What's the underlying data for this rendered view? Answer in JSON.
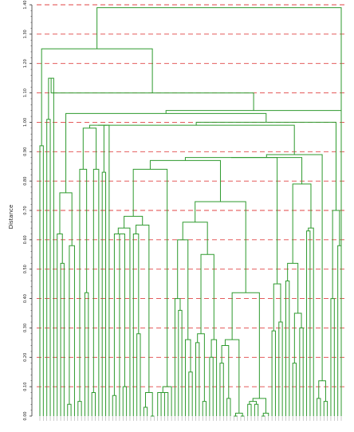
{
  "chart_data": {
    "type": "dendrogram",
    "title": "",
    "ylabel": "Distance",
    "xlabel": "",
    "ylim": [
      0,
      1.4
    ],
    "grid": true,
    "grid_style": "dashed",
    "colors": {
      "branch": "#2e9a2e",
      "grid": "#e04545",
      "axis": "#333333"
    },
    "y_ticks": [
      "0.00",
      "0.10",
      "0.20",
      "0.30",
      "0.40",
      "0.50",
      "0.60",
      "0.70",
      "0.80",
      "0.90",
      "1.00",
      "1.10",
      "1.20",
      "1.30",
      "1.40"
    ],
    "leaf_labels": [
      "",
      "",
      "",
      "",
      "",
      "",
      "",
      "",
      "",
      "",
      "",
      "",
      "",
      "",
      "",
      "",
      "",
      "",
      "",
      "",
      "",
      "",
      "",
      "",
      "",
      "",
      "",
      "",
      "",
      "",
      "",
      "",
      "",
      "",
      "",
      "",
      "",
      "",
      "",
      "",
      "",
      "",
      "",
      "",
      "",
      "",
      "",
      "",
      "",
      "",
      "",
      "",
      "",
      "",
      "",
      "",
      "",
      "",
      "",
      "",
      "",
      "",
      "",
      "",
      "",
      "",
      "",
      "",
      "",
      "",
      "",
      "",
      "",
      "",
      "",
      "",
      "",
      "",
      "",
      "",
      "",
      "",
      "",
      "",
      "",
      "",
      "",
      "",
      "",
      "",
      "",
      ""
    ],
    "links": [
      {
        "x": [
          0,
          1.8,
          3.6
        ],
        "h": 0.92
      },
      {
        "x": [
          2.7,
          3.9,
          5.1
        ],
        "h": 1.02
      },
      {
        "x": [
          3.9,
          5.7,
          7.5
        ],
        "h": 1.05
      },
      {
        "x": [
          6.6,
          8.1,
          9.6
        ],
        "h": 1.1
      },
      {
        "x": [
          8.0,
          9.8,
          11.6
        ],
        "h": 0.74
      },
      {
        "x": [
          9.8,
          12.2,
          14.6
        ],
        "h": 0.95
      },
      {
        "x": [
          14.0,
          16.2,
          18.4
        ],
        "h": 0.65
      },
      {
        "x": [
          17.0,
          18.6,
          20.2
        ],
        "h": 0.82
      },
      {
        "x": [
          20.0,
          21.2,
          22.4
        ],
        "h": 0.58
      },
      {
        "x": [
          22.0,
          23.0,
          24.0
        ],
        "h": 0.62
      },
      {
        "x": [
          24.0,
          25.3,
          26.6
        ],
        "h": 0.38
      },
      {
        "x": [
          26.0,
          27.2,
          28.4
        ],
        "h": 0.34
      },
      {
        "x": [
          28.0,
          29.5,
          31.0
        ],
        "h": 0.06
      },
      {
        "x": [
          30.0,
          31.2,
          32.4
        ],
        "h": 0.07
      },
      {
        "x": [
          32.0,
          33.4,
          34.8
        ],
        "h": 0.04
      },
      {
        "x": [
          34.0,
          35.6,
          37.2
        ],
        "h": 0.09
      },
      {
        "x": [
          36.6,
          38.0,
          39.4
        ],
        "h": 0.42
      },
      {
        "x": [
          38.0,
          39.6,
          41.2
        ],
        "h": 0.44
      },
      {
        "x": [
          40.8,
          42.2,
          43.6
        ],
        "h": 0.9
      },
      {
        "x": [
          43.0,
          44.5,
          46.0
        ],
        "h": 0.96
      },
      {
        "x": [
          45.6,
          47.3,
          49.0
        ],
        "h": 0.98
      },
      {
        "x": [
          48.0,
          49.7,
          51.4
        ],
        "h": 1.02
      },
      {
        "x": [
          50.0,
          51.7,
          53.4
        ],
        "h": 0.8
      },
      {
        "x": [
          52.8,
          54.6,
          56.4
        ],
        "h": 0.68
      },
      {
        "x": [
          55.0,
          56.6,
          58.2
        ],
        "h": 0.72
      },
      {
        "x": [
          57.0,
          58.4,
          59.8
        ],
        "h": 0.82
      },
      {
        "x": [
          59.0,
          60.9,
          62.8
        ],
        "h": 0.9
      },
      {
        "x": [
          61.0,
          63.4,
          65.8
        ],
        "h": 0.96
      },
      {
        "x": [
          64.0,
          66.0,
          68.0
        ],
        "h": 1.0
      },
      {
        "x": [
          66.5,
          68.3,
          70.1
        ],
        "h": 1.06
      }
    ],
    "leaves": 88
  }
}
